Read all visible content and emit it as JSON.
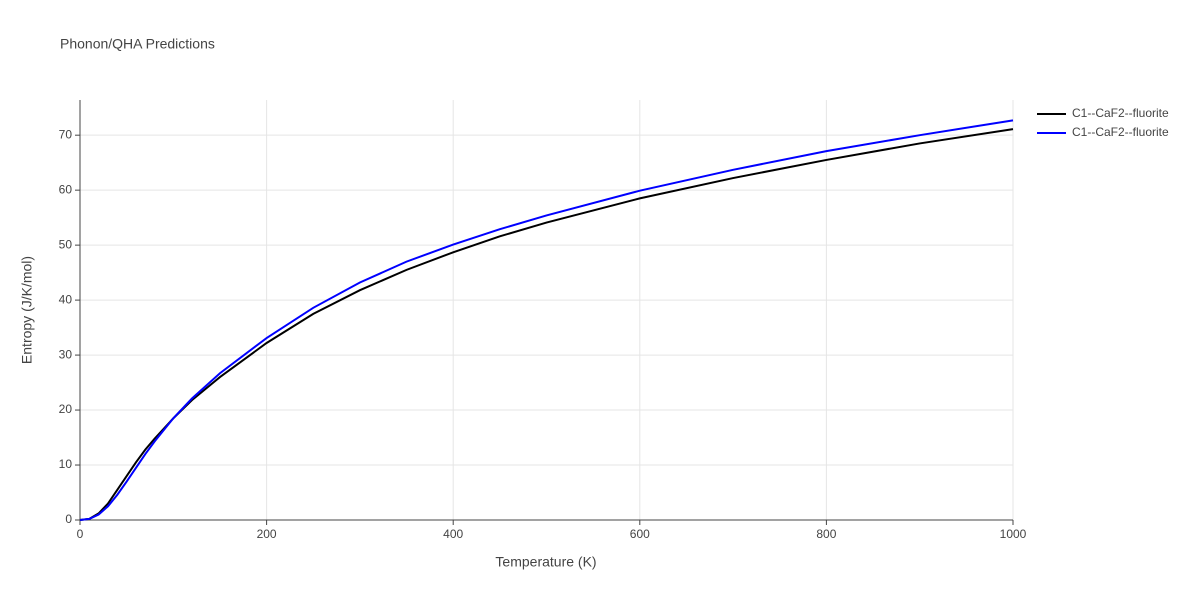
{
  "chart_data": {
    "type": "line",
    "title": "Phonon/QHA Predictions",
    "x_label": "Temperature (K)",
    "y_label": "Entropy (J/K/mol)",
    "x": [
      0,
      10,
      20,
      30,
      40,
      50,
      60,
      70,
      80,
      100,
      120,
      150,
      200,
      250,
      300,
      350,
      400,
      450,
      500,
      600,
      700,
      800,
      900,
      1000
    ],
    "series": [
      {
        "name": "C1--CaF2--fluorite",
        "color": "#000000",
        "values": [
          0,
          0.2,
          1.2,
          3,
          5.5,
          8,
          10.5,
          12.8,
          14.8,
          18.5,
          21.8,
          26,
          32.2,
          37.5,
          41.8,
          45.5,
          48.7,
          51.6,
          54.1,
          58.5,
          62.2,
          65.5,
          68.5,
          71.1
        ]
      },
      {
        "name": "C1--CaF2--fluorite",
        "color": "#0000ff",
        "values": [
          0,
          0.2,
          1,
          2.5,
          4.6,
          7,
          9.5,
          12,
          14.3,
          18.5,
          22.1,
          26.7,
          33.1,
          38.6,
          43.2,
          47,
          50.1,
          52.9,
          55.4,
          59.9,
          63.7,
          67.1,
          70,
          72.7
        ]
      }
    ],
    "xlim": [
      0,
      1000
    ],
    "ylim": [
      0,
      76.4
    ],
    "xticks": [
      0,
      200,
      400,
      600,
      800,
      1000
    ],
    "yticks": [
      0,
      10,
      20,
      30,
      40,
      50,
      60,
      70
    ],
    "grid": true,
    "legend": "right"
  }
}
